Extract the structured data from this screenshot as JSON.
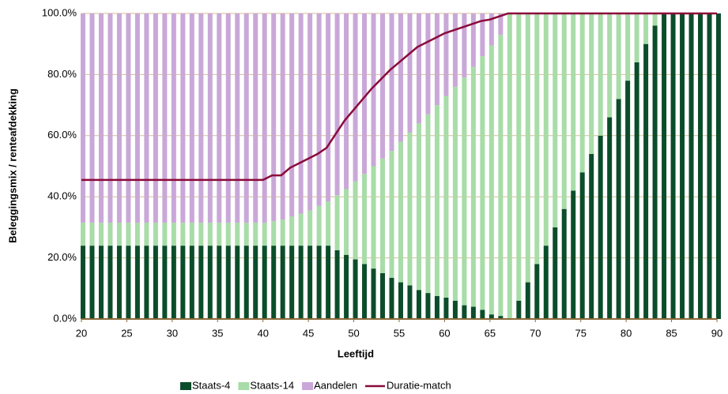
{
  "chart_data": {
    "type": "bar",
    "stacked": true,
    "x_label": "Leeftijd",
    "y_label": "Beleggingsmix / renteafdekking",
    "x": [
      20,
      21,
      22,
      23,
      24,
      25,
      26,
      27,
      28,
      29,
      30,
      31,
      32,
      33,
      34,
      35,
      36,
      37,
      38,
      39,
      40,
      41,
      42,
      43,
      44,
      45,
      46,
      47,
      48,
      49,
      50,
      51,
      52,
      53,
      54,
      55,
      56,
      57,
      58,
      59,
      60,
      61,
      62,
      63,
      64,
      65,
      66,
      67,
      68,
      69,
      70,
      71,
      72,
      73,
      74,
      75,
      76,
      77,
      78,
      79,
      80,
      81,
      82,
      83,
      84,
      85,
      86,
      87,
      88,
      89,
      90
    ],
    "xlim": [
      20,
      90
    ],
    "xticks": [
      20,
      25,
      30,
      35,
      40,
      45,
      50,
      55,
      60,
      65,
      70,
      75,
      80,
      85,
      90
    ],
    "ylim": [
      0,
      100
    ],
    "yticks": [
      {
        "value": 0,
        "label": "0.0%"
      },
      {
        "value": 20,
        "label": "20.0%"
      },
      {
        "value": 40,
        "label": "40.0%"
      },
      {
        "value": 60,
        "label": "60.0%"
      },
      {
        "value": 80,
        "label": "80.0%"
      },
      {
        "value": 100,
        "label": "100.0%"
      }
    ],
    "grid": true,
    "legend": "bottom",
    "series": [
      {
        "name": "Staats-4",
        "color": "#0b4d2a",
        "type": "bar",
        "values": [
          24,
          24,
          24,
          24,
          24,
          24,
          24,
          24,
          24,
          24,
          24,
          24,
          24,
          24,
          24,
          24,
          24,
          24,
          24,
          24,
          24,
          24,
          24,
          24,
          24,
          24,
          24,
          24,
          22.5,
          21,
          19.5,
          18,
          16.5,
          15,
          13.5,
          12,
          11,
          9.5,
          8.5,
          7.5,
          7,
          6,
          4.5,
          4,
          3,
          1.5,
          1,
          0,
          6,
          12,
          18,
          24,
          30,
          36,
          42,
          48,
          54,
          60,
          66,
          72,
          78,
          84,
          90,
          96,
          100,
          100,
          100,
          100,
          100,
          100,
          100
        ]
      },
      {
        "name": "Staats-14",
        "color": "#a8dca8",
        "type": "bar",
        "values": [
          7.5,
          7.5,
          7.5,
          7.5,
          7.5,
          7.5,
          7.5,
          7.5,
          7.5,
          7.5,
          7.5,
          7.5,
          7.5,
          7.5,
          7.5,
          7.5,
          7.5,
          7.5,
          7.5,
          7.5,
          7.5,
          8,
          8.5,
          9.5,
          10.5,
          11.5,
          13,
          14.5,
          18,
          21.5,
          25.5,
          29.5,
          33.5,
          37.5,
          41.5,
          46,
          50,
          54.5,
          58.5,
          62.5,
          66,
          70,
          74.5,
          78.5,
          83,
          88,
          92,
          100,
          94,
          88,
          82,
          76,
          70,
          64,
          58,
          52,
          46,
          40,
          34,
          28,
          22,
          16,
          10,
          4,
          0,
          0,
          0,
          0,
          0,
          0,
          0
        ]
      },
      {
        "name": "Aandelen",
        "color": "#c9a8d8",
        "type": "bar",
        "values": [
          68.5,
          68.5,
          68.5,
          68.5,
          68.5,
          68.5,
          68.5,
          68.5,
          68.5,
          68.5,
          68.5,
          68.5,
          68.5,
          68.5,
          68.5,
          68.5,
          68.5,
          68.5,
          68.5,
          68.5,
          68.5,
          68,
          67.5,
          66.5,
          65.5,
          64.5,
          63,
          61.5,
          59.5,
          57.5,
          55,
          52.5,
          50,
          47.5,
          45,
          42,
          39,
          36,
          33,
          30,
          27,
          24,
          21,
          17.5,
          14,
          10.5,
          7,
          0,
          0,
          0,
          0,
          0,
          0,
          0,
          0,
          0,
          0,
          0,
          0,
          0,
          0,
          0,
          0,
          0,
          0,
          0,
          0,
          0,
          0,
          0,
          0
        ]
      },
      {
        "name": "Duratie-match",
        "color": "#8b0a3a",
        "type": "line",
        "values": [
          45.5,
          45.5,
          45.5,
          45.5,
          45.5,
          45.5,
          45.5,
          45.5,
          45.5,
          45.5,
          45.5,
          45.5,
          45.5,
          45.5,
          45.5,
          45.5,
          45.5,
          45.5,
          45.5,
          45.5,
          45.5,
          47,
          47,
          49.5,
          51,
          52.5,
          54,
          56,
          60.5,
          65,
          68.5,
          72,
          75.5,
          78.5,
          81.5,
          84,
          86.5,
          89,
          90.5,
          92,
          93.5,
          94.5,
          95.5,
          96.5,
          97.5,
          98,
          99,
          100,
          100,
          100,
          100,
          100,
          100,
          100,
          100,
          100,
          100,
          100,
          100,
          100,
          100,
          100,
          100,
          100,
          100,
          100,
          100,
          100,
          100,
          100,
          100
        ]
      }
    ]
  }
}
